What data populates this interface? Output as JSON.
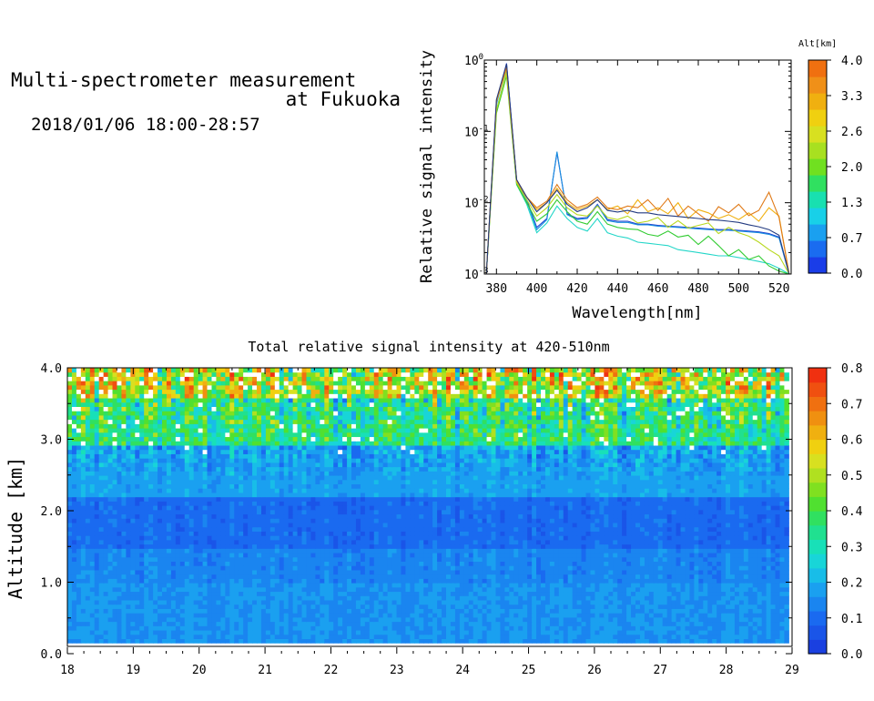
{
  "header": {
    "title_line1": "Multi-spectrometer measurement",
    "title_line2": "at Fukuoka",
    "datetime": "2018/01/06 18:00-28:57"
  },
  "chart_data": [
    {
      "type": "line",
      "xlabel": "Wavelength[nm]",
      "ylabel": "Relative signal intensity",
      "xlim": [
        374,
        526
      ],
      "ylim": [
        0.001,
        1
      ],
      "yscale": "log",
      "xticks": [
        380,
        400,
        420,
        440,
        460,
        480,
        500,
        520
      ],
      "yticks": [
        0.001,
        0.01,
        0.1,
        1
      ],
      "ytick_labels": [
        {
          "base": "10",
          "exp": "-3"
        },
        {
          "base": "10",
          "exp": "-2"
        },
        {
          "base": "10",
          "exp": "-1"
        },
        {
          "base": "10",
          "exp": "0"
        }
      ],
      "x": [
        375,
        380,
        385,
        390,
        395,
        400,
        405,
        410,
        415,
        420,
        425,
        430,
        435,
        440,
        445,
        450,
        455,
        460,
        465,
        470,
        475,
        480,
        485,
        490,
        495,
        500,
        505,
        510,
        515,
        520,
        525
      ],
      "series": [
        {
          "alt": 0.0,
          "color": "#1f3fd0",
          "values": [
            0.001,
            0.25,
            0.9,
            0.02,
            0.011,
            0.0045,
            0.006,
            0.05,
            0.007,
            0.006,
            0.0062,
            0.0095,
            0.0058,
            0.0055,
            0.0055,
            0.005,
            0.005,
            0.0048,
            0.0047,
            0.0046,
            0.0045,
            0.0044,
            0.0043,
            0.0042,
            0.0042,
            0.0041,
            0.004,
            0.0039,
            0.0037,
            0.0033,
            0.001
          ]
        },
        {
          "alt": 0.7,
          "color": "#1a8fe0",
          "values": [
            0.001,
            0.24,
            0.85,
            0.019,
            0.0105,
            0.0042,
            0.0058,
            0.052,
            0.0068,
            0.0058,
            0.006,
            0.0092,
            0.0056,
            0.0053,
            0.0053,
            0.0049,
            0.0049,
            0.0047,
            0.0046,
            0.0045,
            0.0044,
            0.0043,
            0.0042,
            0.0041,
            0.0041,
            0.004,
            0.0039,
            0.0038,
            0.0036,
            0.0032,
            0.001
          ]
        },
        {
          "alt": 1.3,
          "color": "#22d6c8",
          "values": [
            0.001,
            0.2,
            0.7,
            0.018,
            0.0095,
            0.0038,
            0.0052,
            0.009,
            0.006,
            0.0045,
            0.004,
            0.006,
            0.0038,
            0.0034,
            0.0032,
            0.0028,
            0.0027,
            0.0026,
            0.0025,
            0.0022,
            0.0021,
            0.002,
            0.0019,
            0.0018,
            0.0018,
            0.0017,
            0.0016,
            0.0015,
            0.0014,
            0.0012,
            0.001
          ]
        },
        {
          "alt": 2.0,
          "color": "#33cc33",
          "values": [
            0.001,
            0.18,
            0.6,
            0.018,
            0.01,
            0.0055,
            0.007,
            0.011,
            0.0075,
            0.0055,
            0.005,
            0.0075,
            0.005,
            0.0045,
            0.0043,
            0.0042,
            0.0036,
            0.0034,
            0.004,
            0.0033,
            0.0035,
            0.0026,
            0.0034,
            0.0025,
            0.0018,
            0.0022,
            0.0016,
            0.0018,
            0.0013,
            0.0011,
            0.001
          ]
        },
        {
          "alt": 2.6,
          "color": "#b8d820",
          "values": [
            0.001,
            0.2,
            0.65,
            0.019,
            0.011,
            0.0065,
            0.0085,
            0.013,
            0.0085,
            0.0068,
            0.0065,
            0.009,
            0.0062,
            0.0058,
            0.0065,
            0.0052,
            0.0055,
            0.0062,
            0.0045,
            0.0056,
            0.0044,
            0.0048,
            0.0052,
            0.0037,
            0.0045,
            0.0038,
            0.0034,
            0.0028,
            0.0022,
            0.0018,
            0.001
          ]
        },
        {
          "alt": 3.3,
          "color": "#f0b010",
          "values": [
            0.001,
            0.26,
            0.75,
            0.02,
            0.012,
            0.008,
            0.01,
            0.016,
            0.01,
            0.008,
            0.009,
            0.011,
            0.008,
            0.009,
            0.007,
            0.011,
            0.0075,
            0.0085,
            0.007,
            0.01,
            0.006,
            0.008,
            0.0072,
            0.006,
            0.0068,
            0.0058,
            0.0072,
            0.0055,
            0.0085,
            0.0065,
            0.001
          ]
        },
        {
          "alt": 4.0,
          "color": "#e07a18",
          "values": [
            0.001,
            0.27,
            0.8,
            0.021,
            0.012,
            0.0085,
            0.0105,
            0.018,
            0.011,
            0.0085,
            0.0095,
            0.012,
            0.0085,
            0.008,
            0.009,
            0.0085,
            0.011,
            0.0078,
            0.0115,
            0.0065,
            0.009,
            0.007,
            0.0055,
            0.0088,
            0.0072,
            0.0095,
            0.0066,
            0.0078,
            0.014,
            0.0062,
            0.001
          ]
        },
        {
          "alt": null,
          "color": "#223a80",
          "values": [
            0.001,
            0.28,
            0.88,
            0.021,
            0.012,
            0.0075,
            0.01,
            0.015,
            0.0095,
            0.0075,
            0.0085,
            0.011,
            0.0078,
            0.0074,
            0.0078,
            0.0072,
            0.0072,
            0.0068,
            0.0066,
            0.0064,
            0.0062,
            0.006,
            0.0058,
            0.0057,
            0.0055,
            0.0053,
            0.0049,
            0.0046,
            0.0042,
            0.0035,
            0.001
          ]
        }
      ]
    },
    {
      "type": "heatmap",
      "title": "Total relative signal intensity at 420-510nm",
      "xlabel": "",
      "ylabel": "Altitude [km]",
      "xlim": [
        18,
        29
      ],
      "ylim": [
        0.0,
        4.0
      ],
      "xticks": [
        18,
        19,
        20,
        21,
        22,
        23,
        24,
        25,
        26,
        27,
        28,
        29
      ],
      "yticks": [
        0.0,
        1.0,
        2.0,
        3.0,
        4.0
      ],
      "ytick_labels": [
        "0.0",
        "1.0",
        "2.0",
        "3.0",
        "4.0"
      ],
      "data_xrange": [
        18.0,
        28.95
      ],
      "data_yrange": [
        0.15,
        4.0
      ],
      "description_rows": [
        {
          "alt_range": [
            0.15,
            1.0
          ],
          "level": 0.16
        },
        {
          "alt_range": [
            1.0,
            1.5
          ],
          "level": 0.14
        },
        {
          "alt_range": [
            1.5,
            2.2
          ],
          "level": 0.1
        },
        {
          "alt_range": [
            2.2,
            2.9
          ],
          "level": 0.18
        },
        {
          "alt_range": [
            2.9,
            3.6
          ],
          "level": 0.35
        },
        {
          "alt_range": [
            3.6,
            4.0
          ],
          "level": 0.5
        }
      ]
    }
  ],
  "colorbars": [
    {
      "title": "Alt[km]",
      "tick_labels": [
        "0.0",
        "0.7",
        "1.3",
        "2.0",
        "2.6",
        "3.3",
        "4.0"
      ],
      "colors": [
        "#1a3de8",
        "#1a6cf0",
        "#1aa0f0",
        "#18d0e8",
        "#18e0b0",
        "#30e060",
        "#70e020",
        "#a8e020",
        "#d8e020",
        "#f0d010",
        "#f0b010",
        "#f09018",
        "#f07010"
      ]
    },
    {
      "title": "",
      "tick_labels": [
        "0.0",
        "0.1",
        "0.2",
        "0.3",
        "0.4",
        "0.5",
        "0.6",
        "0.7",
        "0.8"
      ],
      "colors": [
        "#1a40e0",
        "#1a55e8",
        "#1a6af0",
        "#1a85f0",
        "#1aa0f0",
        "#18bde8",
        "#18d5d8",
        "#18e0b8",
        "#20e090",
        "#30e060",
        "#50e030",
        "#80e020",
        "#b0e020",
        "#d8e020",
        "#f0d010",
        "#f0b010",
        "#f09010",
        "#f07010",
        "#f05010",
        "#f03010"
      ]
    }
  ]
}
